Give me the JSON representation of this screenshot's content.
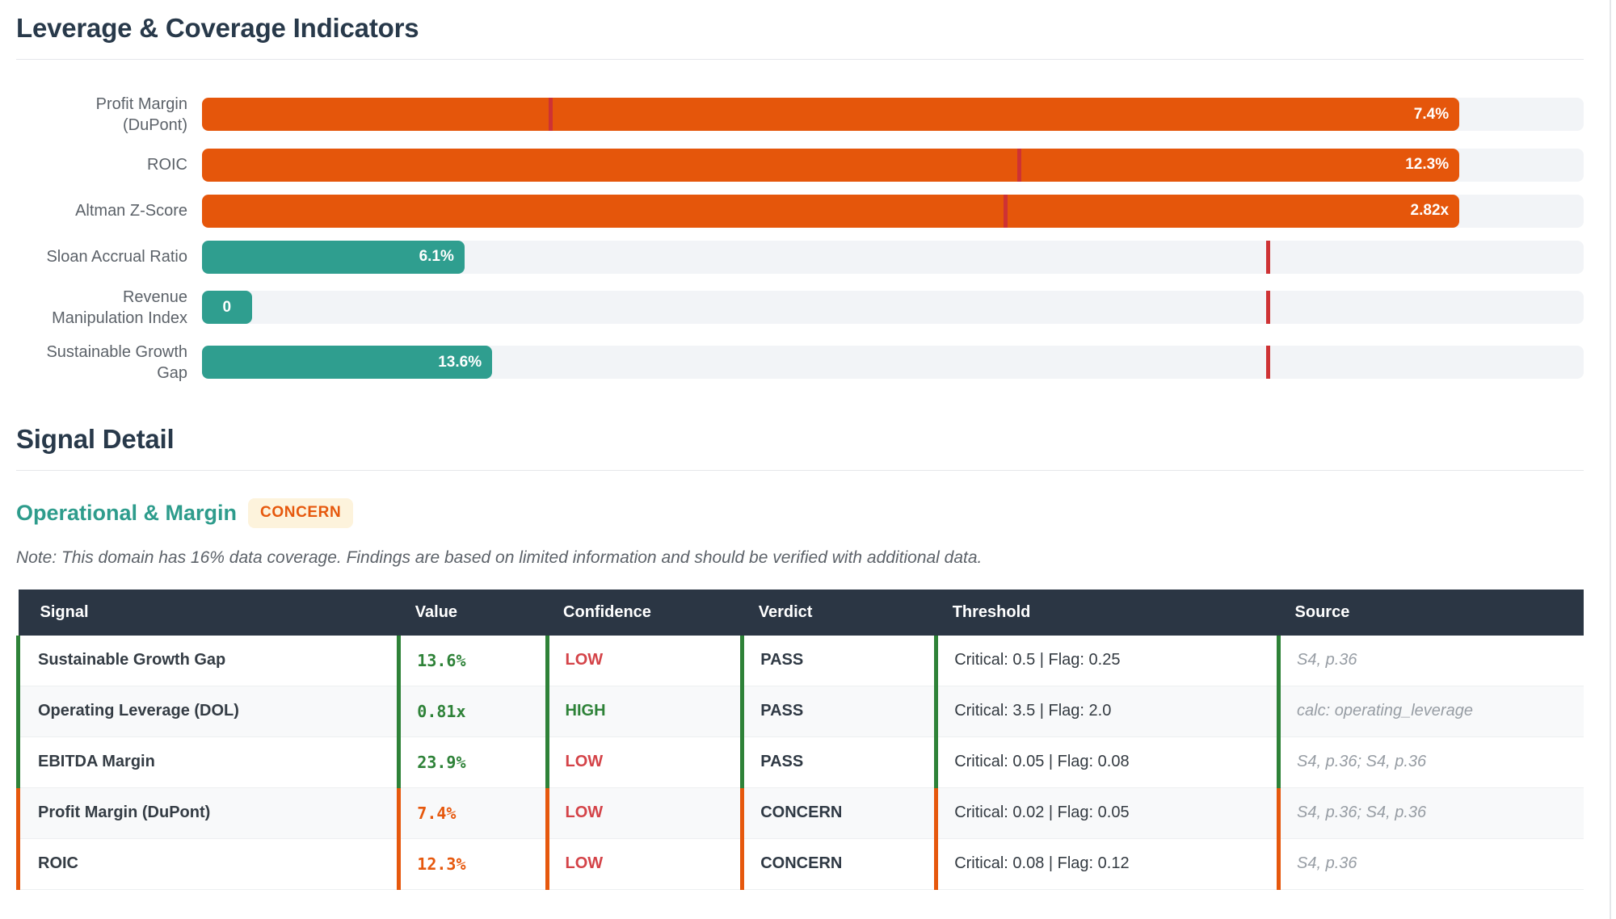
{
  "page": {
    "leverage_section_title": "Leverage & Coverage Indicators",
    "signal_detail_title": "Signal Detail",
    "domain_heading": "Operational & Margin",
    "domain_badge": "CONCERN",
    "note": "Note: This domain has 16% data coverage. Findings are based on limited information and should be verified with additional data."
  },
  "colors": {
    "bar_flag": "#E5560B",
    "bar_ok": "#2F9E8F",
    "marker": "#CE3234",
    "pass_green": "#2E8238",
    "concern_orange": "#E6580D",
    "low_red": "#D44348",
    "header_navy": "#2B3644",
    "badge_bg": "#FDF3DC"
  },
  "chart_data": {
    "type": "bar",
    "orientation": "horizontal",
    "title": "Leverage & Coverage Indicators",
    "grid": false,
    "rows": [
      {
        "label": "Profit Margin (DuPont)",
        "value": 7.4,
        "value_label": "7.4%",
        "bar_pct": 91,
        "marker_pct": 25.1,
        "status": "flag"
      },
      {
        "label": "ROIC",
        "value": 12.3,
        "value_label": "12.3%",
        "bar_pct": 91,
        "marker_pct": 59.0,
        "status": "flag"
      },
      {
        "label": "Altman Z-Score",
        "value": 2.82,
        "value_label": "2.82x",
        "bar_pct": 91,
        "marker_pct": 58.0,
        "status": "flag"
      },
      {
        "label": "Sloan Accrual Ratio",
        "value": 6.1,
        "value_label": "6.1%",
        "bar_pct": 19.0,
        "marker_pct": 77.0,
        "status": "ok"
      },
      {
        "label": "Revenue Manipulation Index",
        "value": 0,
        "value_label": "0",
        "bar_pct": 3.6,
        "marker_pct": 77.0,
        "status": "ok"
      },
      {
        "label": "Sustainable Growth Gap",
        "value": 13.6,
        "value_label": "13.6%",
        "bar_pct": 21.0,
        "marker_pct": 77.0,
        "status": "ok"
      }
    ]
  },
  "signal_table": {
    "columns": [
      "Signal",
      "Value",
      "Confidence",
      "Verdict",
      "Threshold",
      "Source"
    ],
    "rows": [
      {
        "signal": "Sustainable Growth Gap",
        "value": "13.6%",
        "confidence": "LOW",
        "verdict": "PASS",
        "threshold": "Critical: 0.5 | Flag: 0.25",
        "source": "S4, p.36",
        "status": "pass",
        "conf": "low"
      },
      {
        "signal": "Operating Leverage (DOL)",
        "value": "0.81x",
        "confidence": "HIGH",
        "verdict": "PASS",
        "threshold": "Critical: 3.5 | Flag: 2.0",
        "source": "calc: operating_leverage",
        "status": "pass",
        "conf": "high"
      },
      {
        "signal": "EBITDA Margin",
        "value": "23.9%",
        "confidence": "LOW",
        "verdict": "PASS",
        "threshold": "Critical: 0.05 | Flag: 0.08",
        "source": "S4, p.36; S4, p.36",
        "status": "pass",
        "conf": "low"
      },
      {
        "signal": "Profit Margin (DuPont)",
        "value": "7.4%",
        "confidence": "LOW",
        "verdict": "CONCERN",
        "threshold": "Critical: 0.02 | Flag: 0.05",
        "source": "S4, p.36; S4, p.36",
        "status": "concern",
        "conf": "low"
      },
      {
        "signal": "ROIC",
        "value": "12.3%",
        "confidence": "LOW",
        "verdict": "CONCERN",
        "threshold": "Critical: 0.08 | Flag: 0.12",
        "source": "S4, p.36",
        "status": "concern",
        "conf": "low"
      }
    ]
  }
}
